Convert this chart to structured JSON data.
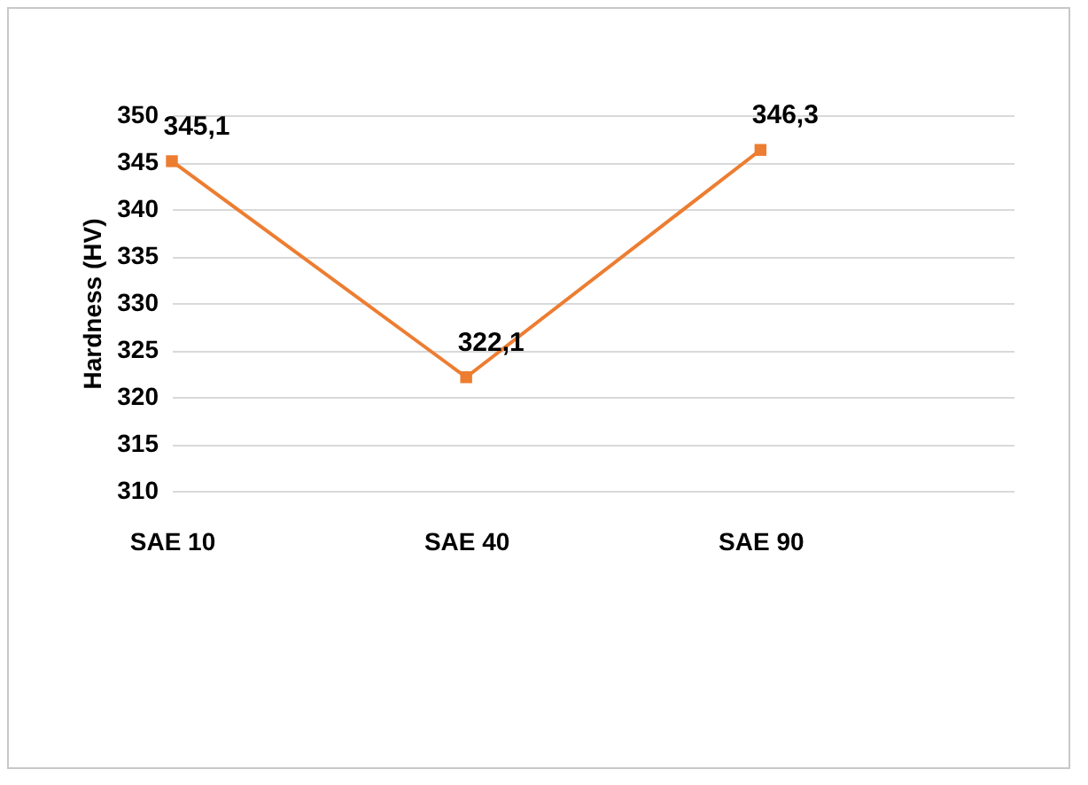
{
  "chart_data": {
    "type": "line",
    "ylabel": "Hardness (HV)",
    "categories": [
      "SAE 10",
      "SAE 40",
      "SAE 90"
    ],
    "series": [
      {
        "color": "#ed7d31",
        "values": [
          345.1,
          322.1,
          346.3
        ],
        "value_labels": [
          "345,1",
          "322,1",
          "346,3"
        ]
      }
    ],
    "ylim": [
      310,
      350
    ],
    "yticks": [
      310,
      315,
      320,
      325,
      330,
      335,
      340,
      345,
      350
    ],
    "grid": "y",
    "marker": "square",
    "line_style": "solid"
  }
}
